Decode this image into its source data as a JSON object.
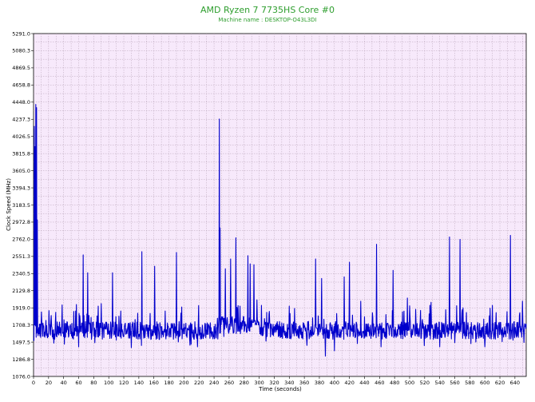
{
  "chart_data": {
    "type": "line",
    "title": "AMD Ryzen 7 7735HS Core #0",
    "subtitle": "Machine name : DESKTOP-O43L3DI",
    "xlabel": "Time (seconds)",
    "ylabel": "Clock Speed (MHz)",
    "xlim": [
      0,
      655
    ],
    "ylim": [
      1076.0,
      5291.0
    ],
    "x_ticks": [
      0,
      20,
      40,
      60,
      80,
      100,
      120,
      140,
      160,
      180,
      200,
      220,
      240,
      260,
      280,
      300,
      320,
      340,
      360,
      380,
      400,
      420,
      440,
      460,
      480,
      500,
      520,
      540,
      560,
      580,
      600,
      620,
      640
    ],
    "y_ticks": [
      "1076.0",
      "1286.8",
      "1497.5",
      "1708.3",
      "1919.0",
      "2129.8",
      "2340.5",
      "2551.3",
      "2762.0",
      "2972.8",
      "3183.5",
      "3394.3",
      "3605.0",
      "3815.8",
      "4026.5",
      "4237.3",
      "4448.0",
      "4658.8",
      "4869.5",
      "5080.3",
      "5291.0"
    ],
    "grid": true,
    "colors": {
      "plot_bg": "#f7e9fb",
      "line": "#0000cc",
      "title": "#2e9e2e",
      "grid": "#b8a4b8"
    },
    "baseline_mhz": 1640,
    "noise_mhz": 110,
    "spikes": [
      {
        "x": 1,
        "y": 4150
      },
      {
        "x": 2,
        "y": 3900
      },
      {
        "x": 3,
        "y": 4420
      },
      {
        "x": 4,
        "y": 4380
      },
      {
        "x": 5,
        "y": 3000
      },
      {
        "x": 57,
        "y": 1960
      },
      {
        "x": 66,
        "y": 2570
      },
      {
        "x": 72,
        "y": 2350
      },
      {
        "x": 86,
        "y": 1940
      },
      {
        "x": 105,
        "y": 2350
      },
      {
        "x": 116,
        "y": 1880
      },
      {
        "x": 144,
        "y": 2610
      },
      {
        "x": 161,
        "y": 2430
      },
      {
        "x": 175,
        "y": 1880
      },
      {
        "x": 190,
        "y": 2600
      },
      {
        "x": 247,
        "y": 4240
      },
      {
        "x": 248,
        "y": 2900
      },
      {
        "x": 255,
        "y": 2400
      },
      {
        "x": 262,
        "y": 2520
      },
      {
        "x": 269,
        "y": 2780
      },
      {
        "x": 285,
        "y": 2560
      },
      {
        "x": 288,
        "y": 2460
      },
      {
        "x": 293,
        "y": 2450
      },
      {
        "x": 303,
        "y": 1950
      },
      {
        "x": 340,
        "y": 1940
      },
      {
        "x": 375,
        "y": 2520
      },
      {
        "x": 383,
        "y": 2280
      },
      {
        "x": 413,
        "y": 2300
      },
      {
        "x": 420,
        "y": 2480
      },
      {
        "x": 435,
        "y": 2000
      },
      {
        "x": 456,
        "y": 2700
      },
      {
        "x": 478,
        "y": 2380
      },
      {
        "x": 497,
        "y": 2040
      },
      {
        "x": 527,
        "y": 1950
      },
      {
        "x": 553,
        "y": 2790
      },
      {
        "x": 567,
        "y": 2760
      },
      {
        "x": 610,
        "y": 1950
      },
      {
        "x": 634,
        "y": 2810
      },
      {
        "x": 650,
        "y": 2000
      }
    ],
    "dips": [
      {
        "x": 60,
        "y": 1440
      },
      {
        "x": 130,
        "y": 1430
      },
      {
        "x": 218,
        "y": 1440
      },
      {
        "x": 388,
        "y": 1270
      },
      {
        "x": 400,
        "y": 1390
      },
      {
        "x": 462,
        "y": 1440
      },
      {
        "x": 540,
        "y": 1440
      },
      {
        "x": 600,
        "y": 1440
      }
    ]
  }
}
